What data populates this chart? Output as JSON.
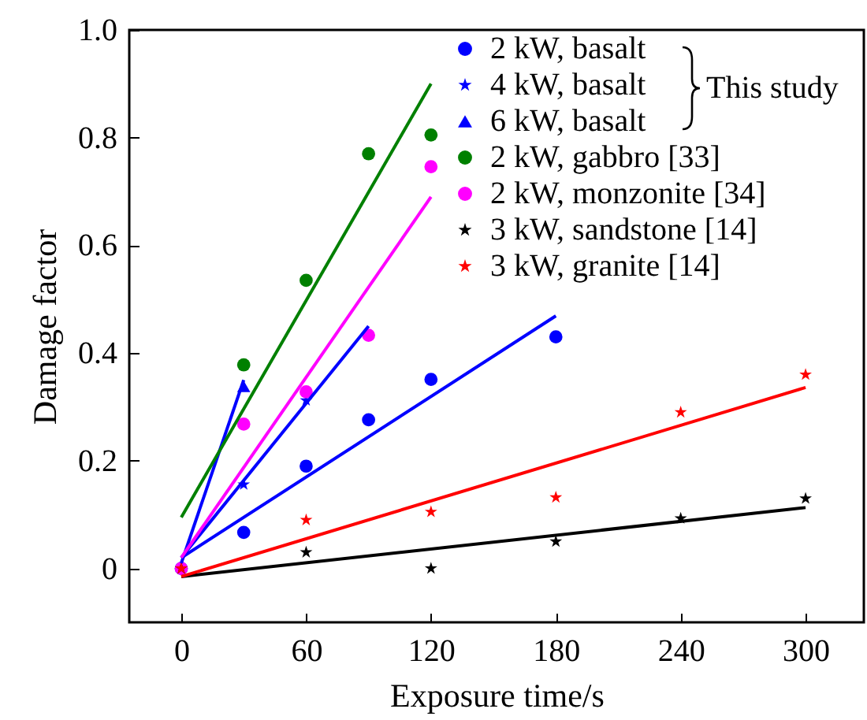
{
  "chart_data": {
    "type": "scatter",
    "xlabel": "Exposure time/s",
    "ylabel": "Damage factor",
    "xlim": [
      -25,
      328
    ],
    "ylim": [
      -0.1,
      1.0
    ],
    "xticks": [
      0,
      60,
      120,
      180,
      240,
      300
    ],
    "yticks": [
      {
        "value": 0,
        "label": "0"
      },
      0.2,
      0.4,
      0.6,
      0.8,
      {
        "value": 1,
        "label": "1.0"
      }
    ],
    "grid": false,
    "legend": "top right",
    "annotations": [
      "This study"
    ],
    "series": [
      {
        "name": "2 kW, basalt",
        "type": "scatter",
        "marker": "circle",
        "color": "#0000ff",
        "x": [
          0,
          30,
          60,
          90,
          120,
          180
        ],
        "values": [
          0,
          0.067,
          0.19,
          0.276,
          0.351,
          0.43
        ]
      },
      {
        "name": "4 kW, basalt",
        "type": "scatter",
        "marker": "star",
        "color": "#0000ff",
        "x": [
          30,
          60
        ],
        "values": [
          0.156,
          0.312
        ]
      },
      {
        "name": "6 kW, basalt",
        "type": "scatter",
        "marker": "triangle",
        "color": "#0000ff",
        "x": [
          30
        ],
        "values": [
          0.338
        ]
      },
      {
        "name": "2 kW, gabbro [33]",
        "type": "scatter",
        "marker": "circle",
        "color": "#008000",
        "x": [
          30,
          60,
          90,
          120
        ],
        "values": [
          0.378,
          0.535,
          0.77,
          0.805
        ]
      },
      {
        "name": "2 kW, monzonite [34]",
        "type": "scatter",
        "marker": "circle",
        "color": "#ff00ff",
        "x": [
          0,
          30,
          60,
          90,
          120
        ],
        "values": [
          0,
          0.268,
          0.328,
          0.433,
          0.746
        ]
      },
      {
        "name": "3 kW, sandstone [14]",
        "type": "scatter",
        "marker": "star",
        "color": "#000000",
        "x": [
          0,
          60,
          120,
          180,
          240,
          300
        ],
        "values": [
          0,
          0.03,
          0,
          0.05,
          0.093,
          0.13
        ]
      },
      {
        "name": "3 kW, granite [14]",
        "type": "scatter",
        "marker": "star",
        "color": "#ff0000",
        "x": [
          0,
          60,
          120,
          180,
          240,
          300
        ],
        "values": [
          0,
          0.09,
          0.105,
          0.132,
          0.29,
          0.36
        ]
      },
      {
        "type": "line",
        "color": "#0000ff",
        "x": [
          0,
          180
        ],
        "values": [
          0.02,
          0.469
        ]
      },
      {
        "type": "line",
        "color": "#0000ff",
        "x": [
          0,
          90
        ],
        "values": [
          0.02,
          0.45
        ]
      },
      {
        "type": "line",
        "color": "#0000ff",
        "x": [
          0,
          30
        ],
        "values": [
          0.01,
          0.35
        ]
      },
      {
        "type": "line",
        "color": "#008000",
        "x": [
          0,
          120
        ],
        "values": [
          0.095,
          0.9
        ]
      },
      {
        "type": "line",
        "color": "#ff00ff",
        "x": [
          0,
          120
        ],
        "values": [
          0.02,
          0.69
        ]
      },
      {
        "type": "line",
        "color": "#000000",
        "x": [
          0,
          300
        ],
        "values": [
          -0.015,
          0.113
        ]
      },
      {
        "type": "line",
        "color": "#ff0000",
        "x": [
          0,
          300
        ],
        "values": [
          -0.015,
          0.336
        ]
      }
    ]
  }
}
